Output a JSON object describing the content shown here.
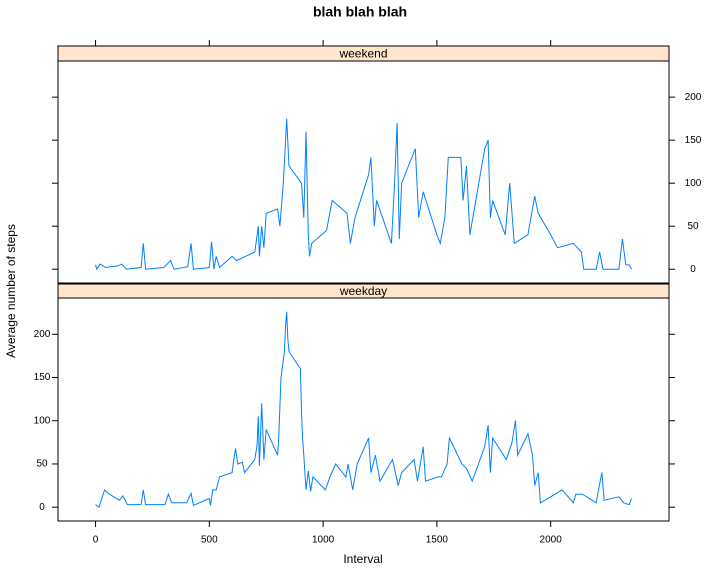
{
  "title": "blah blah blah",
  "xlabel": "Interval",
  "ylabel": "Average number of steps",
  "chart_data": [
    {
      "type": "line",
      "strip": "weekend",
      "color": "#0080ff",
      "xlim": [
        -165,
        2520
      ],
      "ylim": [
        -16,
        242
      ],
      "xticks": [
        0,
        500,
        1000,
        1500,
        2000
      ],
      "yticks": [
        0,
        50,
        100,
        150,
        200
      ],
      "x": [
        0,
        5,
        20,
        45,
        100,
        115,
        135,
        200,
        210,
        220,
        300,
        330,
        345,
        405,
        420,
        430,
        500,
        510,
        520,
        530,
        545,
        600,
        620,
        700,
        715,
        720,
        730,
        740,
        750,
        800,
        810,
        825,
        835,
        840,
        850,
        905,
        915,
        925,
        935,
        940,
        950,
        1015,
        1040,
        1105,
        1120,
        1140,
        1200,
        1210,
        1225,
        1235,
        1300,
        1315,
        1325,
        1335,
        1345,
        1405,
        1420,
        1440,
        1500,
        1515,
        1535,
        1550,
        1605,
        1615,
        1630,
        1645,
        1710,
        1725,
        1735,
        1745,
        1800,
        1820,
        1840,
        1900,
        1930,
        1945,
        2000,
        2030,
        2100,
        2135,
        2145,
        2200,
        2215,
        2230,
        2300,
        2315,
        2330,
        2345,
        2355
      ],
      "values": [
        5,
        0,
        6,
        2,
        4,
        6,
        0,
        2,
        30,
        0,
        2,
        10,
        0,
        3,
        30,
        0,
        2,
        32,
        0,
        15,
        2,
        15,
        10,
        20,
        50,
        15,
        50,
        25,
        65,
        70,
        50,
        100,
        150,
        175,
        120,
        100,
        60,
        160,
        40,
        15,
        30,
        45,
        80,
        65,
        30,
        60,
        110,
        130,
        50,
        80,
        30,
        105,
        170,
        35,
        100,
        140,
        60,
        90,
        40,
        30,
        60,
        130,
        130,
        80,
        120,
        40,
        140,
        150,
        60,
        80,
        40,
        100,
        30,
        40,
        85,
        65,
        40,
        25,
        30,
        20,
        0,
        0,
        20,
        0,
        0,
        35,
        5,
        5,
        0
      ]
    },
    {
      "type": "line",
      "strip": "weekday",
      "color": "#0080ff",
      "xlim": [
        -165,
        2520
      ],
      "ylim": [
        -16,
        242
      ],
      "xticks": [
        0,
        500,
        1000,
        1500,
        2000
      ],
      "yticks": [
        0,
        50,
        100,
        150,
        200
      ],
      "x": [
        0,
        15,
        40,
        55,
        105,
        120,
        140,
        200,
        210,
        220,
        305,
        320,
        335,
        400,
        420,
        430,
        500,
        505,
        515,
        530,
        545,
        600,
        610,
        615,
        625,
        645,
        655,
        700,
        710,
        715,
        720,
        730,
        740,
        750,
        800,
        805,
        815,
        830,
        835,
        840,
        845,
        850,
        900,
        905,
        910,
        915,
        925,
        935,
        945,
        955,
        1010,
        1030,
        1055,
        1100,
        1110,
        1130,
        1150,
        1200,
        1210,
        1230,
        1250,
        1305,
        1330,
        1345,
        1400,
        1415,
        1440,
        1450,
        1505,
        1520,
        1545,
        1555,
        1610,
        1630,
        1655,
        1710,
        1725,
        1735,
        1745,
        1805,
        1830,
        1845,
        1855,
        1900,
        1920,
        1930,
        1945,
        1955,
        2000,
        2050,
        2100,
        2110,
        2140,
        2200,
        2210,
        2225,
        2235,
        2300,
        2320,
        2345,
        2355
      ],
      "values": [
        3,
        0,
        20,
        16,
        8,
        13,
        3,
        3,
        20,
        3,
        3,
        15,
        5,
        5,
        16,
        2,
        10,
        2,
        20,
        20,
        35,
        40,
        60,
        68,
        50,
        52,
        40,
        55,
        72,
        105,
        48,
        120,
        55,
        90,
        60,
        80,
        150,
        180,
        210,
        226,
        195,
        180,
        160,
        110,
        80,
        60,
        20,
        42,
        18,
        35,
        20,
        35,
        50,
        35,
        50,
        20,
        50,
        80,
        40,
        60,
        30,
        55,
        25,
        40,
        55,
        30,
        70,
        30,
        35,
        35,
        50,
        80,
        50,
        45,
        30,
        70,
        95,
        40,
        80,
        55,
        75,
        100,
        60,
        85,
        60,
        25,
        40,
        5,
        12,
        20,
        5,
        15,
        15,
        5,
        20,
        40,
        8,
        12,
        5,
        3,
        10
      ]
    }
  ]
}
